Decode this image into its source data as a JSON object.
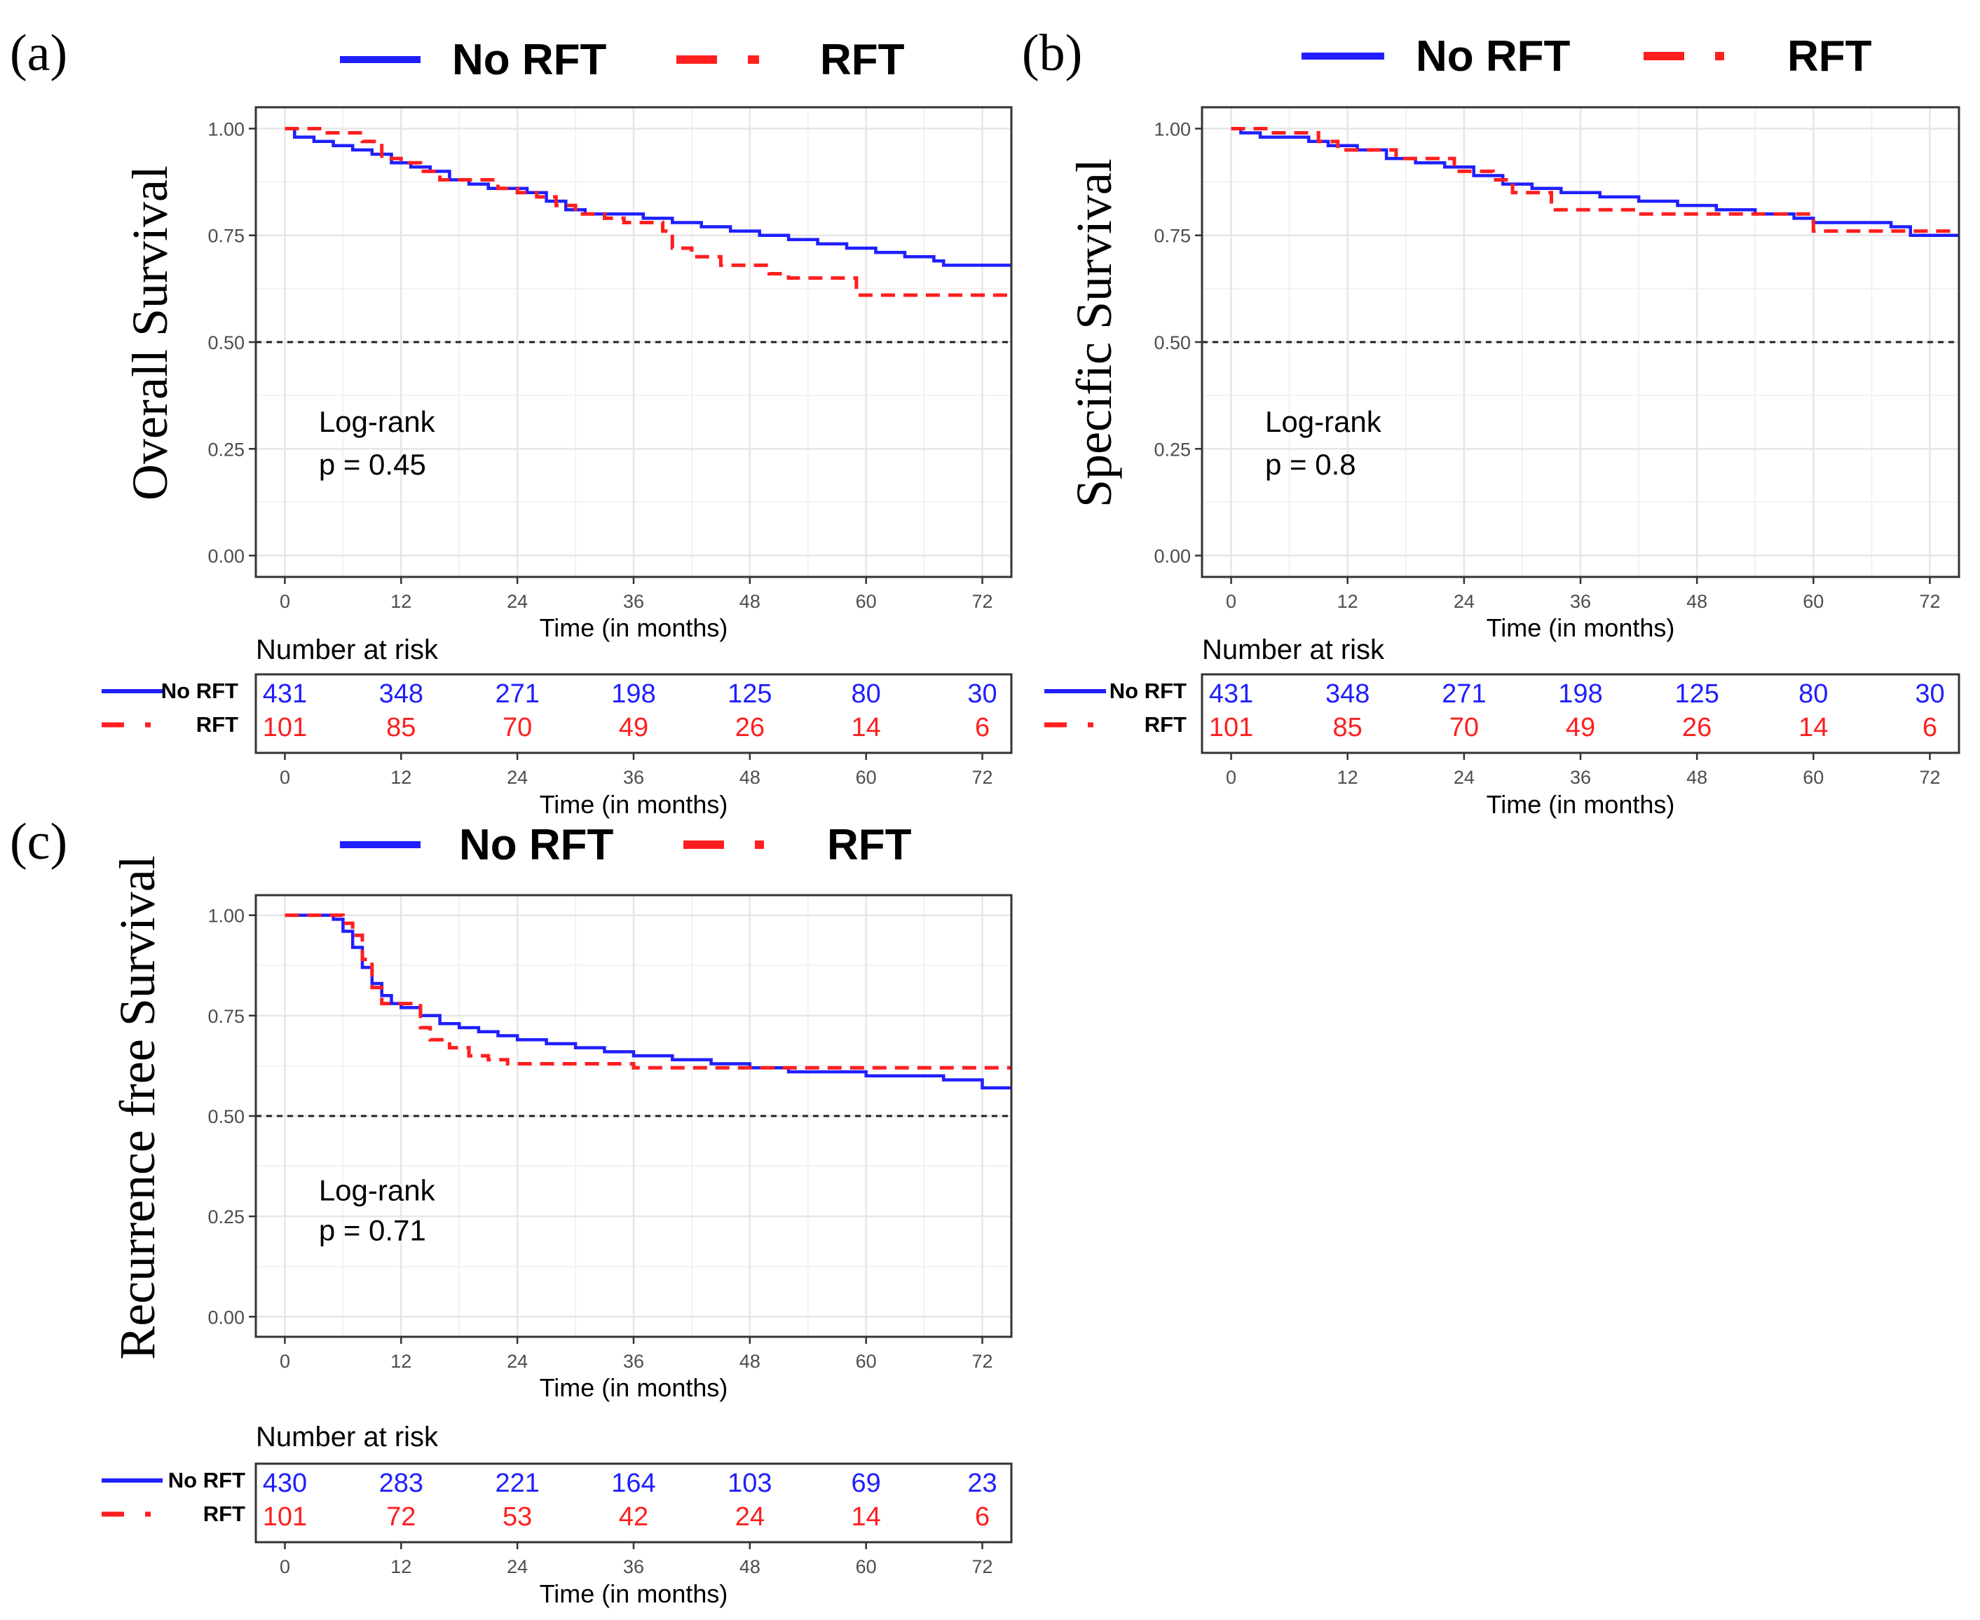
{
  "figure": {
    "panel_tags": [
      "(a)",
      "(b)",
      "(c)"
    ]
  },
  "chart_data": [
    {
      "type": "line",
      "subtype": "kaplan-meier",
      "panel": "(a)",
      "ylabel": "Overall Survival",
      "xlabel": "Time (in months)",
      "xlim": [
        -3,
        75
      ],
      "ylim": [
        -0.05,
        1.05
      ],
      "x_ticks": [
        0,
        12,
        24,
        36,
        48,
        60,
        72
      ],
      "y_ticks": [
        0.0,
        0.25,
        0.5,
        0.75,
        1.0
      ],
      "y_tick_labels": [
        "0.00",
        "0.25",
        "0.50",
        "0.75",
        "1.00"
      ],
      "grid": true,
      "legend": [
        {
          "name": "No RFT",
          "color": "#1f1fff",
          "style": "solid"
        },
        {
          "name": "RFT",
          "color": "#ff1f1f",
          "style": "dashed"
        }
      ],
      "reference_line": {
        "y": 0.5,
        "style": "dotted",
        "color": "#222222"
      },
      "annotation": [
        "Log-rank",
        "p = 0.45"
      ],
      "series": [
        {
          "name": "No RFT",
          "color": "#1f1fff",
          "style": "solid",
          "x": [
            0,
            1,
            3,
            5,
            7,
            9,
            11,
            13,
            15,
            17,
            19,
            21,
            23,
            25,
            27,
            29,
            31,
            34,
            37,
            40,
            43,
            46,
            49,
            52,
            55,
            58,
            61,
            64,
            67,
            68,
            71,
            75
          ],
          "y": [
            1.0,
            0.98,
            0.97,
            0.96,
            0.95,
            0.94,
            0.92,
            0.91,
            0.9,
            0.88,
            0.87,
            0.86,
            0.86,
            0.85,
            0.83,
            0.81,
            0.8,
            0.8,
            0.79,
            0.78,
            0.77,
            0.76,
            0.75,
            0.74,
            0.73,
            0.72,
            0.71,
            0.7,
            0.69,
            0.68,
            0.68,
            0.68
          ]
        },
        {
          "name": "RFT",
          "color": "#ff1f1f",
          "style": "dashed",
          "x": [
            0,
            2,
            4,
            8,
            10,
            12,
            14,
            16,
            20,
            22,
            24,
            26,
            28,
            30,
            33,
            35,
            39,
            40,
            42,
            45,
            47,
            50,
            52,
            56,
            59,
            75
          ],
          "y": [
            1.0,
            1.0,
            0.99,
            0.97,
            0.93,
            0.92,
            0.9,
            0.88,
            0.88,
            0.86,
            0.85,
            0.84,
            0.82,
            0.8,
            0.79,
            0.78,
            0.76,
            0.72,
            0.7,
            0.68,
            0.68,
            0.66,
            0.65,
            0.65,
            0.61,
            0.61
          ]
        }
      ],
      "risk_table": {
        "title": "Number at risk",
        "xlabel": "Time (in months)",
        "times": [
          0,
          12,
          24,
          36,
          48,
          60,
          72
        ],
        "rows": [
          {
            "name": "No RFT",
            "color": "#1f1fff",
            "values": [
              431,
              348,
              271,
              198,
              125,
              80,
              30
            ]
          },
          {
            "name": "RFT",
            "color": "#ff1f1f",
            "values": [
              101,
              85,
              70,
              49,
              26,
              14,
              6
            ]
          }
        ]
      }
    },
    {
      "type": "line",
      "subtype": "kaplan-meier",
      "panel": "(b)",
      "ylabel": "Specific Survival",
      "xlabel": "Time (in months)",
      "xlim": [
        -3,
        75
      ],
      "ylim": [
        -0.05,
        1.05
      ],
      "x_ticks": [
        0,
        12,
        24,
        36,
        48,
        60,
        72
      ],
      "y_ticks": [
        0.0,
        0.25,
        0.5,
        0.75,
        1.0
      ],
      "y_tick_labels": [
        "0.00",
        "0.25",
        "0.50",
        "0.75",
        "1.00"
      ],
      "grid": true,
      "legend": [
        {
          "name": "No RFT",
          "color": "#1f1fff",
          "style": "solid"
        },
        {
          "name": "RFT",
          "color": "#ff1f1f",
          "style": "dashed"
        }
      ],
      "reference_line": {
        "y": 0.5,
        "style": "dotted",
        "color": "#222222"
      },
      "annotation": [
        "Log-rank",
        "p = 0.8"
      ],
      "series": [
        {
          "name": "No RFT",
          "color": "#1f1fff",
          "style": "solid",
          "x": [
            0,
            1,
            3,
            5,
            8,
            10,
            13,
            16,
            19,
            22,
            25,
            28,
            31,
            34,
            38,
            42,
            46,
            50,
            54,
            58,
            60,
            64,
            68,
            70,
            75
          ],
          "y": [
            1.0,
            0.99,
            0.98,
            0.98,
            0.97,
            0.96,
            0.95,
            0.93,
            0.92,
            0.91,
            0.89,
            0.87,
            0.86,
            0.85,
            0.84,
            0.83,
            0.82,
            0.81,
            0.8,
            0.79,
            0.78,
            0.78,
            0.77,
            0.75,
            0.75
          ]
        },
        {
          "name": "RFT",
          "color": "#ff1f1f",
          "style": "dashed",
          "x": [
            0,
            2,
            4,
            9,
            11,
            13,
            17,
            22,
            23,
            27,
            29,
            32,
            33,
            39,
            42,
            59,
            60,
            75
          ],
          "y": [
            1.0,
            1.0,
            0.99,
            0.97,
            0.95,
            0.95,
            0.93,
            0.93,
            0.9,
            0.88,
            0.85,
            0.85,
            0.81,
            0.81,
            0.8,
            0.8,
            0.76,
            0.76
          ]
        }
      ],
      "risk_table": {
        "title": "Number at risk",
        "xlabel": "Time (in months)",
        "times": [
          0,
          12,
          24,
          36,
          48,
          60,
          72
        ],
        "rows": [
          {
            "name": "No RFT",
            "color": "#1f1fff",
            "values": [
              431,
              348,
              271,
              198,
              125,
              80,
              30
            ]
          },
          {
            "name": "RFT",
            "color": "#ff1f1f",
            "values": [
              101,
              85,
              70,
              49,
              26,
              14,
              6
            ]
          }
        ]
      }
    },
    {
      "type": "line",
      "subtype": "kaplan-meier",
      "panel": "(c)",
      "ylabel": "Recurrence free Survival",
      "xlabel": "Time (in months)",
      "xlim": [
        -3,
        75
      ],
      "ylim": [
        -0.05,
        1.05
      ],
      "x_ticks": [
        0,
        12,
        24,
        36,
        48,
        60,
        72
      ],
      "y_ticks": [
        0.0,
        0.25,
        0.5,
        0.75,
        1.0
      ],
      "y_tick_labels": [
        "0.00",
        "0.25",
        "0.50",
        "0.75",
        "1.00"
      ],
      "grid": true,
      "legend": [
        {
          "name": "No RFT",
          "color": "#1f1fff",
          "style": "solid"
        },
        {
          "name": "RFT",
          "color": "#ff1f1f",
          "style": "dashed"
        }
      ],
      "reference_line": {
        "y": 0.5,
        "style": "dotted",
        "color": "#222222"
      },
      "annotation": [
        "Log-rank",
        "p = 0.71"
      ],
      "series": [
        {
          "name": "No RFT",
          "color": "#1f1fff",
          "style": "solid",
          "x": [
            0,
            4,
            5,
            6,
            7,
            8,
            9,
            10,
            11,
            12,
            14,
            16,
            18,
            20,
            22,
            24,
            27,
            30,
            33,
            36,
            40,
            44,
            48,
            52,
            56,
            60,
            64,
            68,
            71,
            72,
            75
          ],
          "y": [
            1.0,
            1.0,
            0.99,
            0.96,
            0.92,
            0.87,
            0.83,
            0.8,
            0.78,
            0.77,
            0.75,
            0.73,
            0.72,
            0.71,
            0.7,
            0.69,
            0.68,
            0.67,
            0.66,
            0.65,
            0.64,
            0.63,
            0.62,
            0.61,
            0.61,
            0.6,
            0.6,
            0.59,
            0.59,
            0.57,
            0.57
          ]
        },
        {
          "name": "RFT",
          "color": "#ff1f1f",
          "style": "dashed",
          "x": [
            0,
            5,
            6,
            7,
            8,
            9,
            10,
            13,
            14,
            15,
            17,
            19,
            21,
            23,
            28,
            36,
            39,
            48,
            53,
            75
          ],
          "y": [
            1.0,
            1.0,
            0.98,
            0.95,
            0.89,
            0.82,
            0.78,
            0.78,
            0.72,
            0.69,
            0.67,
            0.65,
            0.64,
            0.63,
            0.63,
            0.62,
            0.62,
            0.62,
            0.62,
            0.62
          ]
        }
      ],
      "risk_table": {
        "title": "Number at risk",
        "xlabel": "Time (in months)",
        "times": [
          0,
          12,
          24,
          36,
          48,
          60,
          72
        ],
        "rows": [
          {
            "name": "No RFT",
            "color": "#1f1fff",
            "values": [
              430,
              283,
              221,
              164,
              103,
              69,
              23
            ]
          },
          {
            "name": "RFT",
            "color": "#ff1f1f",
            "values": [
              101,
              72,
              53,
              42,
              24,
              14,
              6
            ]
          }
        ]
      }
    }
  ]
}
